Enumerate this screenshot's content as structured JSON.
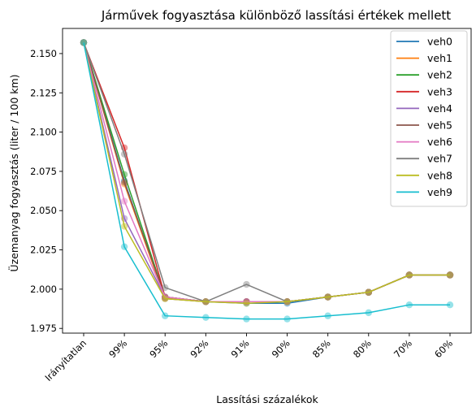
{
  "chart_data": {
    "type": "line",
    "title": "Járművek fogyasztása különböző lassítási értékek mellett",
    "xlabel": "Lassítási százalékok",
    "ylabel": "Üzemanyag fogyasztás (liter / 100 km)",
    "categories": [
      "Irányítatlan",
      "99%",
      "95%",
      "92%",
      "91%",
      "90%",
      "85%",
      "80%",
      "70%",
      "60%"
    ],
    "ylim": [
      1.972,
      2.166
    ],
    "yticks": [
      "1.975",
      "2.000",
      "2.025",
      "2.050",
      "2.075",
      "2.100",
      "2.125",
      "2.150"
    ],
    "grid": false,
    "legend_position": "top-right",
    "series": [
      {
        "name": "veh0",
        "color": "#1f77b4",
        "values": [
          2.157,
          2.069,
          1.994,
          1.992,
          1.991,
          1.991,
          1.995,
          1.998,
          2.009,
          2.009
        ]
      },
      {
        "name": "veh1",
        "color": "#ff7f0e",
        "values": [
          2.157,
          2.067,
          1.994,
          1.992,
          1.992,
          1.992,
          1.995,
          1.998,
          2.009,
          2.009
        ]
      },
      {
        "name": "veh2",
        "color": "#2ca02c",
        "values": [
          2.157,
          2.073,
          1.995,
          1.992,
          1.992,
          1.992,
          1.995,
          1.998,
          2.009,
          2.009
        ]
      },
      {
        "name": "veh3",
        "color": "#d62728",
        "values": [
          2.157,
          2.09,
          1.995,
          1.992,
          1.992,
          1.992,
          1.995,
          1.998,
          2.009,
          2.009
        ]
      },
      {
        "name": "veh4",
        "color": "#9467bd",
        "values": [
          2.157,
          2.045,
          1.995,
          1.992,
          1.992,
          1.992,
          1.995,
          1.998,
          2.009,
          2.009
        ]
      },
      {
        "name": "veh5",
        "color": "#8c564b",
        "values": [
          2.157,
          2.068,
          1.995,
          1.992,
          1.992,
          1.992,
          1.995,
          1.998,
          2.009,
          2.009
        ]
      },
      {
        "name": "veh6",
        "color": "#e377c2",
        "values": [
          2.157,
          2.056,
          1.995,
          1.992,
          1.992,
          1.992,
          1.995,
          1.998,
          2.009,
          2.009
        ]
      },
      {
        "name": "veh7",
        "color": "#7f7f7f",
        "values": [
          2.157,
          2.086,
          2.001,
          1.992,
          2.003,
          1.992,
          1.995,
          1.998,
          2.009,
          2.009
        ]
      },
      {
        "name": "veh8",
        "color": "#bcbd22",
        "values": [
          2.157,
          2.04,
          1.994,
          1.992,
          1.991,
          1.992,
          1.995,
          1.998,
          2.009,
          2.009
        ]
      },
      {
        "name": "veh9",
        "color": "#17becf",
        "values": [
          2.157,
          2.027,
          1.983,
          1.982,
          1.981,
          1.981,
          1.983,
          1.985,
          1.99,
          1.99
        ]
      }
    ]
  }
}
